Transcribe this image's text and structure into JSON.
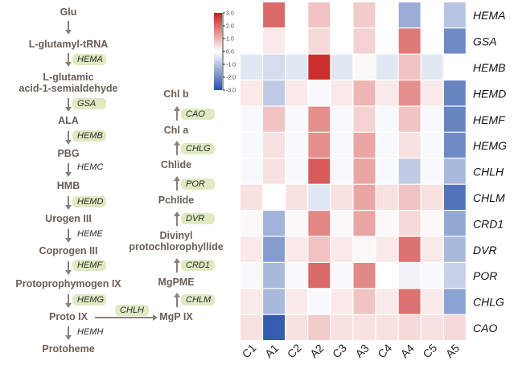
{
  "pathway": {
    "left_chain": [
      {
        "metabolite": "Glu"
      },
      {
        "metabolite": "L-glutamyl-tRNA"
      },
      {
        "metabolite": "L-glutamic acid-1-semialdehyde",
        "line1": "L-glutamic",
        "line2": "acid-1-semialdehyde"
      },
      {
        "metabolite": "ALA"
      },
      {
        "metabolite": "PBG"
      },
      {
        "metabolite": "HMB"
      },
      {
        "metabolite": "Urogen III"
      },
      {
        "metabolite": "Coprogen III"
      },
      {
        "metabolite": "Protoprophymogen IX"
      },
      {
        "metabolite": "Proto IX"
      },
      {
        "metabolite": "Protoheme"
      }
    ],
    "left_enzymes": [
      {
        "name": "",
        "highlighted": false
      },
      {
        "name": "HEMA",
        "highlighted": true
      },
      {
        "name": "GSA",
        "highlighted": true
      },
      {
        "name": "HEMB",
        "highlighted": true
      },
      {
        "name": "HEMC",
        "highlighted": false
      },
      {
        "name": "HEMD",
        "highlighted": true
      },
      {
        "name": "HEME",
        "highlighted": false
      },
      {
        "name": "HEMF",
        "highlighted": true
      },
      {
        "name": "HEMG",
        "highlighted": true
      },
      {
        "name": "HEMH",
        "highlighted": false
      }
    ],
    "branch_enzyme": {
      "name": "CHLH",
      "highlighted": true
    },
    "right_chain": [
      {
        "metabolite": "MgP IX"
      },
      {
        "metabolite": "MgPME"
      },
      {
        "metabolite": "Divinyl protochlorophyllide",
        "line1": "Divinyl",
        "line2": "protochlorophyllide"
      },
      {
        "metabolite": "Pchlide"
      },
      {
        "metabolite": "Chlide"
      },
      {
        "metabolite": "Chl a"
      },
      {
        "metabolite": "Chl b"
      }
    ],
    "right_enzymes": [
      {
        "name": "CHLM",
        "highlighted": true
      },
      {
        "name": "CRD1",
        "highlighted": true
      },
      {
        "name": "DVR",
        "highlighted": true
      },
      {
        "name": "POR",
        "highlighted": true
      },
      {
        "name": "CHLG",
        "highlighted": true
      },
      {
        "name": "CAO",
        "highlighted": true
      }
    ]
  },
  "colors": {
    "highlight": "#dfeac2",
    "low": "#2850a8",
    "mid": "#ffffff",
    "high": "#c8201e"
  },
  "chart_data": {
    "type": "heatmap",
    "title": "",
    "columns": [
      "C1",
      "A1",
      "C2",
      "A2",
      "C3",
      "A3",
      "C4",
      "A4",
      "C5",
      "A5"
    ],
    "rows": [
      "HEMA",
      "GSA",
      "HEMB",
      "HEMD",
      "HEMF",
      "HEMG",
      "CHLH",
      "CHLM",
      "CRD1",
      "DVR",
      "POR",
      "CHLG",
      "CAO"
    ],
    "values": [
      [
        0.0,
        2.0,
        0.0,
        0.8,
        0.0,
        0.7,
        0.0,
        -1.4,
        0.0,
        -1.0
      ],
      [
        0.0,
        0.3,
        0.0,
        0.5,
        0.0,
        0.6,
        0.0,
        1.8,
        0.0,
        -2.0
      ],
      [
        -0.4,
        -0.6,
        -0.4,
        2.8,
        -0.4,
        0.1,
        -0.4,
        0.8,
        -0.4,
        0.0
      ],
      [
        0.3,
        -0.9,
        0.3,
        -0.1,
        0.3,
        1.0,
        0.3,
        1.5,
        0.3,
        -2.1
      ],
      [
        -0.1,
        0.8,
        -0.1,
        1.5,
        -0.1,
        0.6,
        -0.1,
        0.8,
        -0.1,
        -2.1
      ],
      [
        -0.1,
        0.4,
        -0.1,
        1.5,
        -0.1,
        1.2,
        -0.1,
        0.4,
        -0.1,
        -2.0
      ],
      [
        -0.1,
        0.4,
        -0.1,
        2.2,
        -0.1,
        1.2,
        -0.1,
        -0.9,
        -0.1,
        -1.2
      ],
      [
        0.4,
        0.0,
        0.4,
        -0.4,
        0.4,
        1.2,
        0.4,
        0.8,
        0.4,
        -2.4
      ],
      [
        0.1,
        -1.3,
        0.1,
        1.6,
        0.1,
        1.2,
        0.1,
        0.5,
        0.1,
        -1.5
      ],
      [
        0.3,
        -1.7,
        0.3,
        0.8,
        0.3,
        0.1,
        0.3,
        1.9,
        0.3,
        -1.2
      ],
      [
        -0.1,
        -1.2,
        -0.1,
        2.0,
        -0.1,
        1.6,
        0.0,
        -0.2,
        -0.1,
        -0.8
      ],
      [
        0.3,
        -1.2,
        0.3,
        -0.1,
        0.3,
        0.8,
        0.3,
        1.9,
        0.3,
        -1.6
      ],
      [
        0.4,
        -2.8,
        0.4,
        0.7,
        0.4,
        0.4,
        0.4,
        0.5,
        0.4,
        0.5
      ]
    ],
    "colorbar": {
      "range": [
        -3.0,
        3.0
      ],
      "ticks": [
        "3.0",
        "2.0",
        "1.0",
        "0.0",
        "-1.0",
        "-2.0",
        "-3.0"
      ],
      "tick_values": [
        3,
        2,
        1,
        0,
        -1,
        -2,
        -3
      ],
      "placement": "top-left"
    }
  }
}
